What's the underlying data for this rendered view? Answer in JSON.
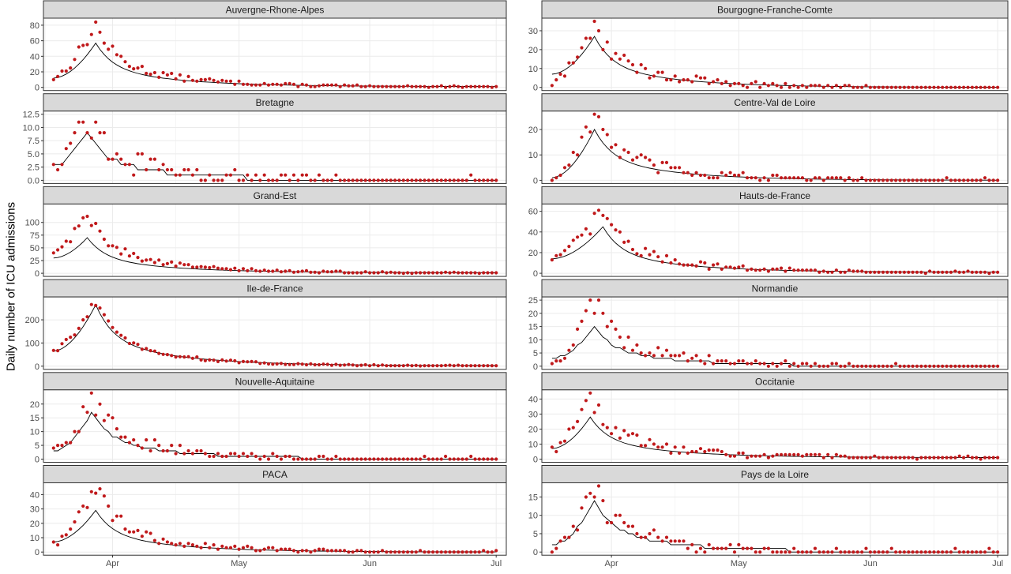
{
  "chart_data": {
    "type": "scatter",
    "ylabel": "Daily number of ICU admissions",
    "xlabel": "",
    "x_ticks": [
      "Apr",
      "May",
      "Jun",
      "Jul"
    ],
    "layers": [
      "daily observed admissions (points)",
      "smoothed trend (line)"
    ],
    "colors": {
      "points": "#c0191b",
      "line": "#000000",
      "strip": "#d9d9d9",
      "grid": "#ebebeb"
    },
    "panels": [
      {
        "name": "Auvergne-Rhone-Alpes",
        "ylim": [
          0,
          85
        ],
        "yticks": [
          0,
          20,
          40,
          60,
          80
        ],
        "ytick_labels": [
          "0",
          "20",
          "40",
          "60",
          "80"
        ],
        "peak_date": "03-28",
        "peak_obs": 80,
        "peak_fit": 57,
        "start_obs": 12,
        "start_fit": 12,
        "tail": 1
      },
      {
        "name": "Bourgogne-Franche-Comte",
        "ylim": [
          0,
          35
        ],
        "yticks": [
          0,
          10,
          20,
          30
        ],
        "ytick_labels": [
          "0",
          "10",
          "20",
          "30"
        ],
        "peak_date": "03-28",
        "peak_obs": 33,
        "peak_fit": 27,
        "start_obs": 2,
        "start_fit": 7,
        "tail": 0
      },
      {
        "name": "Bretagne",
        "ylim": [
          0,
          12.5
        ],
        "yticks": [
          0,
          2.5,
          5,
          7.5,
          10,
          12.5
        ],
        "ytick_labels": [
          "0.0",
          "2.5",
          "5.0",
          "7.5",
          "10.0",
          "12.5"
        ],
        "peak_date": "03-26",
        "peak_obs": 12,
        "peak_fit": 9,
        "start_obs": 4,
        "start_fit": 3,
        "tail": 0
      },
      {
        "name": "Centre-Val de Loire",
        "ylim": [
          0,
          26
        ],
        "yticks": [
          0,
          10,
          20
        ],
        "ytick_labels": [
          "0",
          "10",
          "20"
        ],
        "peak_date": "03-28",
        "peak_obs": 26,
        "peak_fit": 20,
        "start_obs": 0,
        "start_fit": 1,
        "tail": 0
      },
      {
        "name": "Grand-Est",
        "ylim": [
          0,
          130
        ],
        "yticks": [
          0,
          25,
          50,
          75,
          100
        ],
        "ytick_labels": [
          "0",
          "25",
          "50",
          "75",
          "100"
        ],
        "peak_date": "03-26",
        "peak_obs": 120,
        "peak_fit": 70,
        "start_obs": 40,
        "start_fit": 30,
        "tail": 1
      },
      {
        "name": "Hauts-de-France",
        "ylim": [
          0,
          64
        ],
        "yticks": [
          0,
          20,
          40,
          60
        ],
        "ytick_labels": [
          "0",
          "20",
          "40",
          "60"
        ],
        "peak_date": "03-30",
        "peak_obs": 62,
        "peak_fit": 45,
        "start_obs": 12,
        "start_fit": 14,
        "tail": 1
      },
      {
        "name": "Ile-de-France",
        "ylim": [
          0,
          285
        ],
        "yticks": [
          0,
          100,
          200
        ],
        "ytick_labels": [
          "0",
          "100",
          "200"
        ],
        "peak_date": "03-28",
        "peak_obs": 280,
        "peak_fit": 265,
        "start_obs": 65,
        "start_fit": 65,
        "tail": 2
      },
      {
        "name": "Normandie",
        "ylim": [
          0,
          25
        ],
        "yticks": [
          0,
          5,
          10,
          15,
          20,
          25
        ],
        "ytick_labels": [
          "0",
          "5",
          "10",
          "15",
          "20",
          "25"
        ],
        "peak_date": "03-28",
        "peak_obs": 25,
        "peak_fit": 15,
        "start_obs": 1,
        "start_fit": 3,
        "tail": 0
      },
      {
        "name": "Nouvelle-Aquitaine",
        "ylim": [
          0,
          24
        ],
        "yticks": [
          0,
          5,
          10,
          15,
          20
        ],
        "ytick_labels": [
          "0",
          "5",
          "10",
          "15",
          "20"
        ],
        "peak_date": "03-27",
        "peak_obs": 23,
        "peak_fit": 17,
        "start_obs": 3,
        "start_fit": 3,
        "tail": 0
      },
      {
        "name": "Occitanie",
        "ylim": [
          0,
          44
        ],
        "yticks": [
          0,
          10,
          20,
          30,
          40
        ],
        "ytick_labels": [
          "0",
          "10",
          "20",
          "30",
          "40"
        ],
        "peak_date": "03-27",
        "peak_obs": 41,
        "peak_fit": 28,
        "start_obs": 6,
        "start_fit": 7,
        "tail": 1
      },
      {
        "name": "PACA",
        "ylim": [
          0,
          46
        ],
        "yticks": [
          0,
          10,
          20,
          30,
          40
        ],
        "ytick_labels": [
          "0",
          "10",
          "20",
          "30",
          "40"
        ],
        "peak_date": "03-28",
        "peak_obs": 45,
        "peak_fit": 29,
        "start_obs": 5,
        "start_fit": 7,
        "tail": 0
      },
      {
        "name": "Pays de la Loire",
        "ylim": [
          0,
          18
        ],
        "yticks": [
          0,
          5,
          10,
          15
        ],
        "ytick_labels": [
          "0",
          "5",
          "10",
          "15"
        ],
        "peak_date": "03-28",
        "peak_obs": 17,
        "peak_fit": 14,
        "start_obs": 0,
        "start_fit": 2,
        "tail": 0
      }
    ],
    "x_start": "03-18",
    "x_end": "07-01",
    "grid": true,
    "legend": "none"
  }
}
